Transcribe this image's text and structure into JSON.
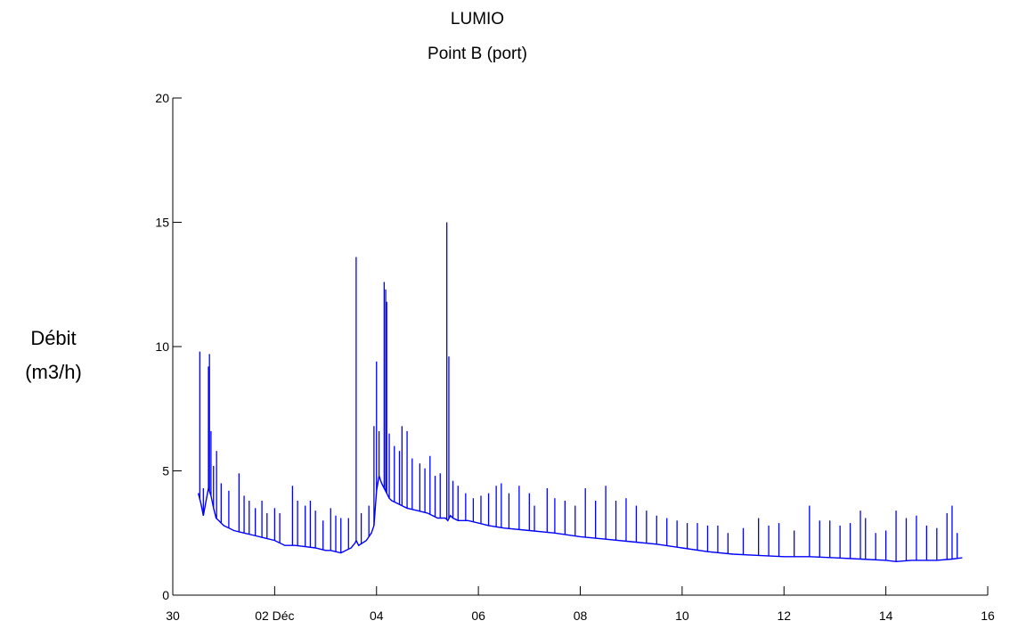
{
  "chart_data": {
    "type": "line",
    "title": "LUMIO",
    "subtitle": "Point B (port)",
    "ylabel_line1": "Débit",
    "ylabel_line2": "(m3/h)",
    "xlabel": "",
    "x_ticks": [
      {
        "x": 30,
        "label": "30"
      },
      {
        "x": 32,
        "label": "02 Déc"
      },
      {
        "x": 34,
        "label": "04"
      },
      {
        "x": 36,
        "label": "06"
      },
      {
        "x": 38,
        "label": "08"
      },
      {
        "x": 40,
        "label": "10"
      },
      {
        "x": 42,
        "label": "12"
      },
      {
        "x": 44,
        "label": "14"
      },
      {
        "x": 46,
        "label": "16"
      }
    ],
    "y_ticks": [
      0,
      5,
      10,
      15,
      20
    ],
    "xlim": [
      30,
      46
    ],
    "ylim": [
      0,
      20
    ],
    "grid": false,
    "color": "#0000ff",
    "series": [
      {
        "x": [
          30.5,
          30.55,
          30.6,
          30.7,
          30.75,
          30.8,
          30.85,
          30.9,
          30.95,
          31.0,
          31.2,
          31.4,
          31.6,
          31.8,
          32.0,
          32.2,
          32.4,
          32.6,
          32.8,
          33.0,
          33.1,
          33.2,
          33.3,
          33.4,
          33.5,
          33.58,
          33.6,
          33.65,
          33.8,
          33.9,
          33.95,
          34.0,
          34.05,
          34.1,
          34.15,
          34.2,
          34.25,
          34.3,
          34.4,
          34.5,
          34.6,
          34.8,
          35.0,
          35.2,
          35.35,
          35.4,
          35.45,
          35.5,
          35.6,
          35.8,
          36.0,
          36.2,
          36.5,
          37.0,
          37.5,
          38.0,
          38.5,
          39.0,
          39.5,
          40.0,
          40.5,
          41.0,
          41.5,
          42.0,
          42.5,
          43.0,
          43.5,
          44.0,
          44.2,
          44.5,
          45.0,
          45.3,
          45.5
        ],
        "y": [
          4.1,
          3.7,
          3.2,
          4.3,
          4.0,
          3.5,
          3.1,
          3.0,
          2.9,
          2.8,
          2.6,
          2.5,
          2.4,
          2.3,
          2.2,
          2.0,
          2.0,
          1.95,
          1.9,
          1.8,
          1.8,
          1.75,
          1.7,
          1.8,
          1.9,
          2.1,
          2.2,
          2.0,
          2.2,
          2.5,
          2.8,
          4.2,
          4.8,
          4.5,
          4.3,
          4.1,
          3.9,
          3.8,
          3.7,
          3.6,
          3.5,
          3.4,
          3.3,
          3.1,
          3.1,
          3.0,
          3.2,
          3.1,
          3.0,
          3.0,
          2.9,
          2.8,
          2.7,
          2.6,
          2.5,
          2.35,
          2.25,
          2.15,
          2.05,
          1.9,
          1.75,
          1.65,
          1.6,
          1.55,
          1.55,
          1.5,
          1.45,
          1.4,
          1.35,
          1.4,
          1.4,
          1.45,
          1.5
        ]
      }
    ],
    "spikes": [
      [
        30.53,
        9.8
      ],
      [
        30.6,
        4.3
      ],
      [
        30.7,
        9.2
      ],
      [
        30.72,
        9.7
      ],
      [
        30.75,
        6.6
      ],
      [
        30.8,
        5.2
      ],
      [
        30.86,
        5.8
      ],
      [
        30.95,
        4.5
      ],
      [
        31.1,
        4.2
      ],
      [
        31.3,
        4.9
      ],
      [
        31.4,
        4.0
      ],
      [
        31.5,
        3.8
      ],
      [
        31.62,
        3.5
      ],
      [
        31.75,
        3.8
      ],
      [
        31.85,
        3.3
      ],
      [
        32.0,
        3.5
      ],
      [
        32.1,
        3.3
      ],
      [
        32.35,
        4.4
      ],
      [
        32.45,
        3.8
      ],
      [
        32.6,
        3.6
      ],
      [
        32.7,
        3.8
      ],
      [
        32.8,
        3.4
      ],
      [
        32.95,
        3.0
      ],
      [
        33.1,
        3.5
      ],
      [
        33.2,
        3.2
      ],
      [
        33.3,
        3.1
      ],
      [
        33.45,
        3.1
      ],
      [
        33.6,
        13.6
      ],
      [
        33.7,
        3.3
      ],
      [
        33.85,
        3.6
      ],
      [
        33.95,
        6.8
      ],
      [
        34.0,
        9.4
      ],
      [
        34.05,
        6.6
      ],
      [
        34.15,
        12.6
      ],
      [
        34.18,
        12.3
      ],
      [
        34.2,
        11.8
      ],
      [
        34.25,
        6.5
      ],
      [
        34.35,
        6.0
      ],
      [
        34.45,
        5.8
      ],
      [
        34.5,
        6.8
      ],
      [
        34.6,
        6.6
      ],
      [
        34.7,
        5.5
      ],
      [
        34.85,
        5.3
      ],
      [
        34.95,
        5.1
      ],
      [
        35.05,
        5.6
      ],
      [
        35.15,
        4.8
      ],
      [
        35.25,
        4.9
      ],
      [
        35.38,
        15.0
      ],
      [
        35.42,
        9.6
      ],
      [
        35.5,
        4.6
      ],
      [
        35.6,
        4.4
      ],
      [
        35.75,
        4.1
      ],
      [
        35.9,
        3.9
      ],
      [
        36.05,
        4.0
      ],
      [
        36.2,
        4.1
      ],
      [
        36.35,
        4.4
      ],
      [
        36.45,
        4.5
      ],
      [
        36.6,
        4.1
      ],
      [
        36.8,
        4.4
      ],
      [
        37.0,
        4.1
      ],
      [
        37.1,
        3.6
      ],
      [
        37.35,
        4.3
      ],
      [
        37.5,
        3.9
      ],
      [
        37.7,
        3.8
      ],
      [
        37.9,
        3.6
      ],
      [
        38.1,
        4.3
      ],
      [
        38.3,
        3.8
      ],
      [
        38.5,
        4.4
      ],
      [
        38.7,
        3.8
      ],
      [
        38.9,
        3.9
      ],
      [
        39.1,
        3.6
      ],
      [
        39.3,
        3.4
      ],
      [
        39.5,
        3.2
      ],
      [
        39.7,
        3.1
      ],
      [
        39.9,
        3.0
      ],
      [
        40.1,
        2.9
      ],
      [
        40.3,
        2.9
      ],
      [
        40.5,
        2.8
      ],
      [
        40.7,
        2.8
      ],
      [
        40.9,
        2.5
      ],
      [
        41.2,
        2.7
      ],
      [
        41.5,
        3.1
      ],
      [
        41.7,
        2.8
      ],
      [
        41.9,
        2.9
      ],
      [
        42.2,
        2.6
      ],
      [
        42.5,
        3.6
      ],
      [
        42.7,
        3.0
      ],
      [
        42.9,
        3.0
      ],
      [
        43.1,
        2.8
      ],
      [
        43.3,
        2.9
      ],
      [
        43.5,
        3.4
      ],
      [
        43.6,
        3.1
      ],
      [
        43.8,
        2.5
      ],
      [
        44.0,
        2.6
      ],
      [
        44.2,
        3.4
      ],
      [
        44.4,
        3.1
      ],
      [
        44.6,
        3.2
      ],
      [
        44.8,
        2.8
      ],
      [
        45.0,
        2.7
      ],
      [
        45.2,
        3.3
      ],
      [
        45.3,
        3.6
      ],
      [
        45.4,
        2.5
      ]
    ]
  }
}
